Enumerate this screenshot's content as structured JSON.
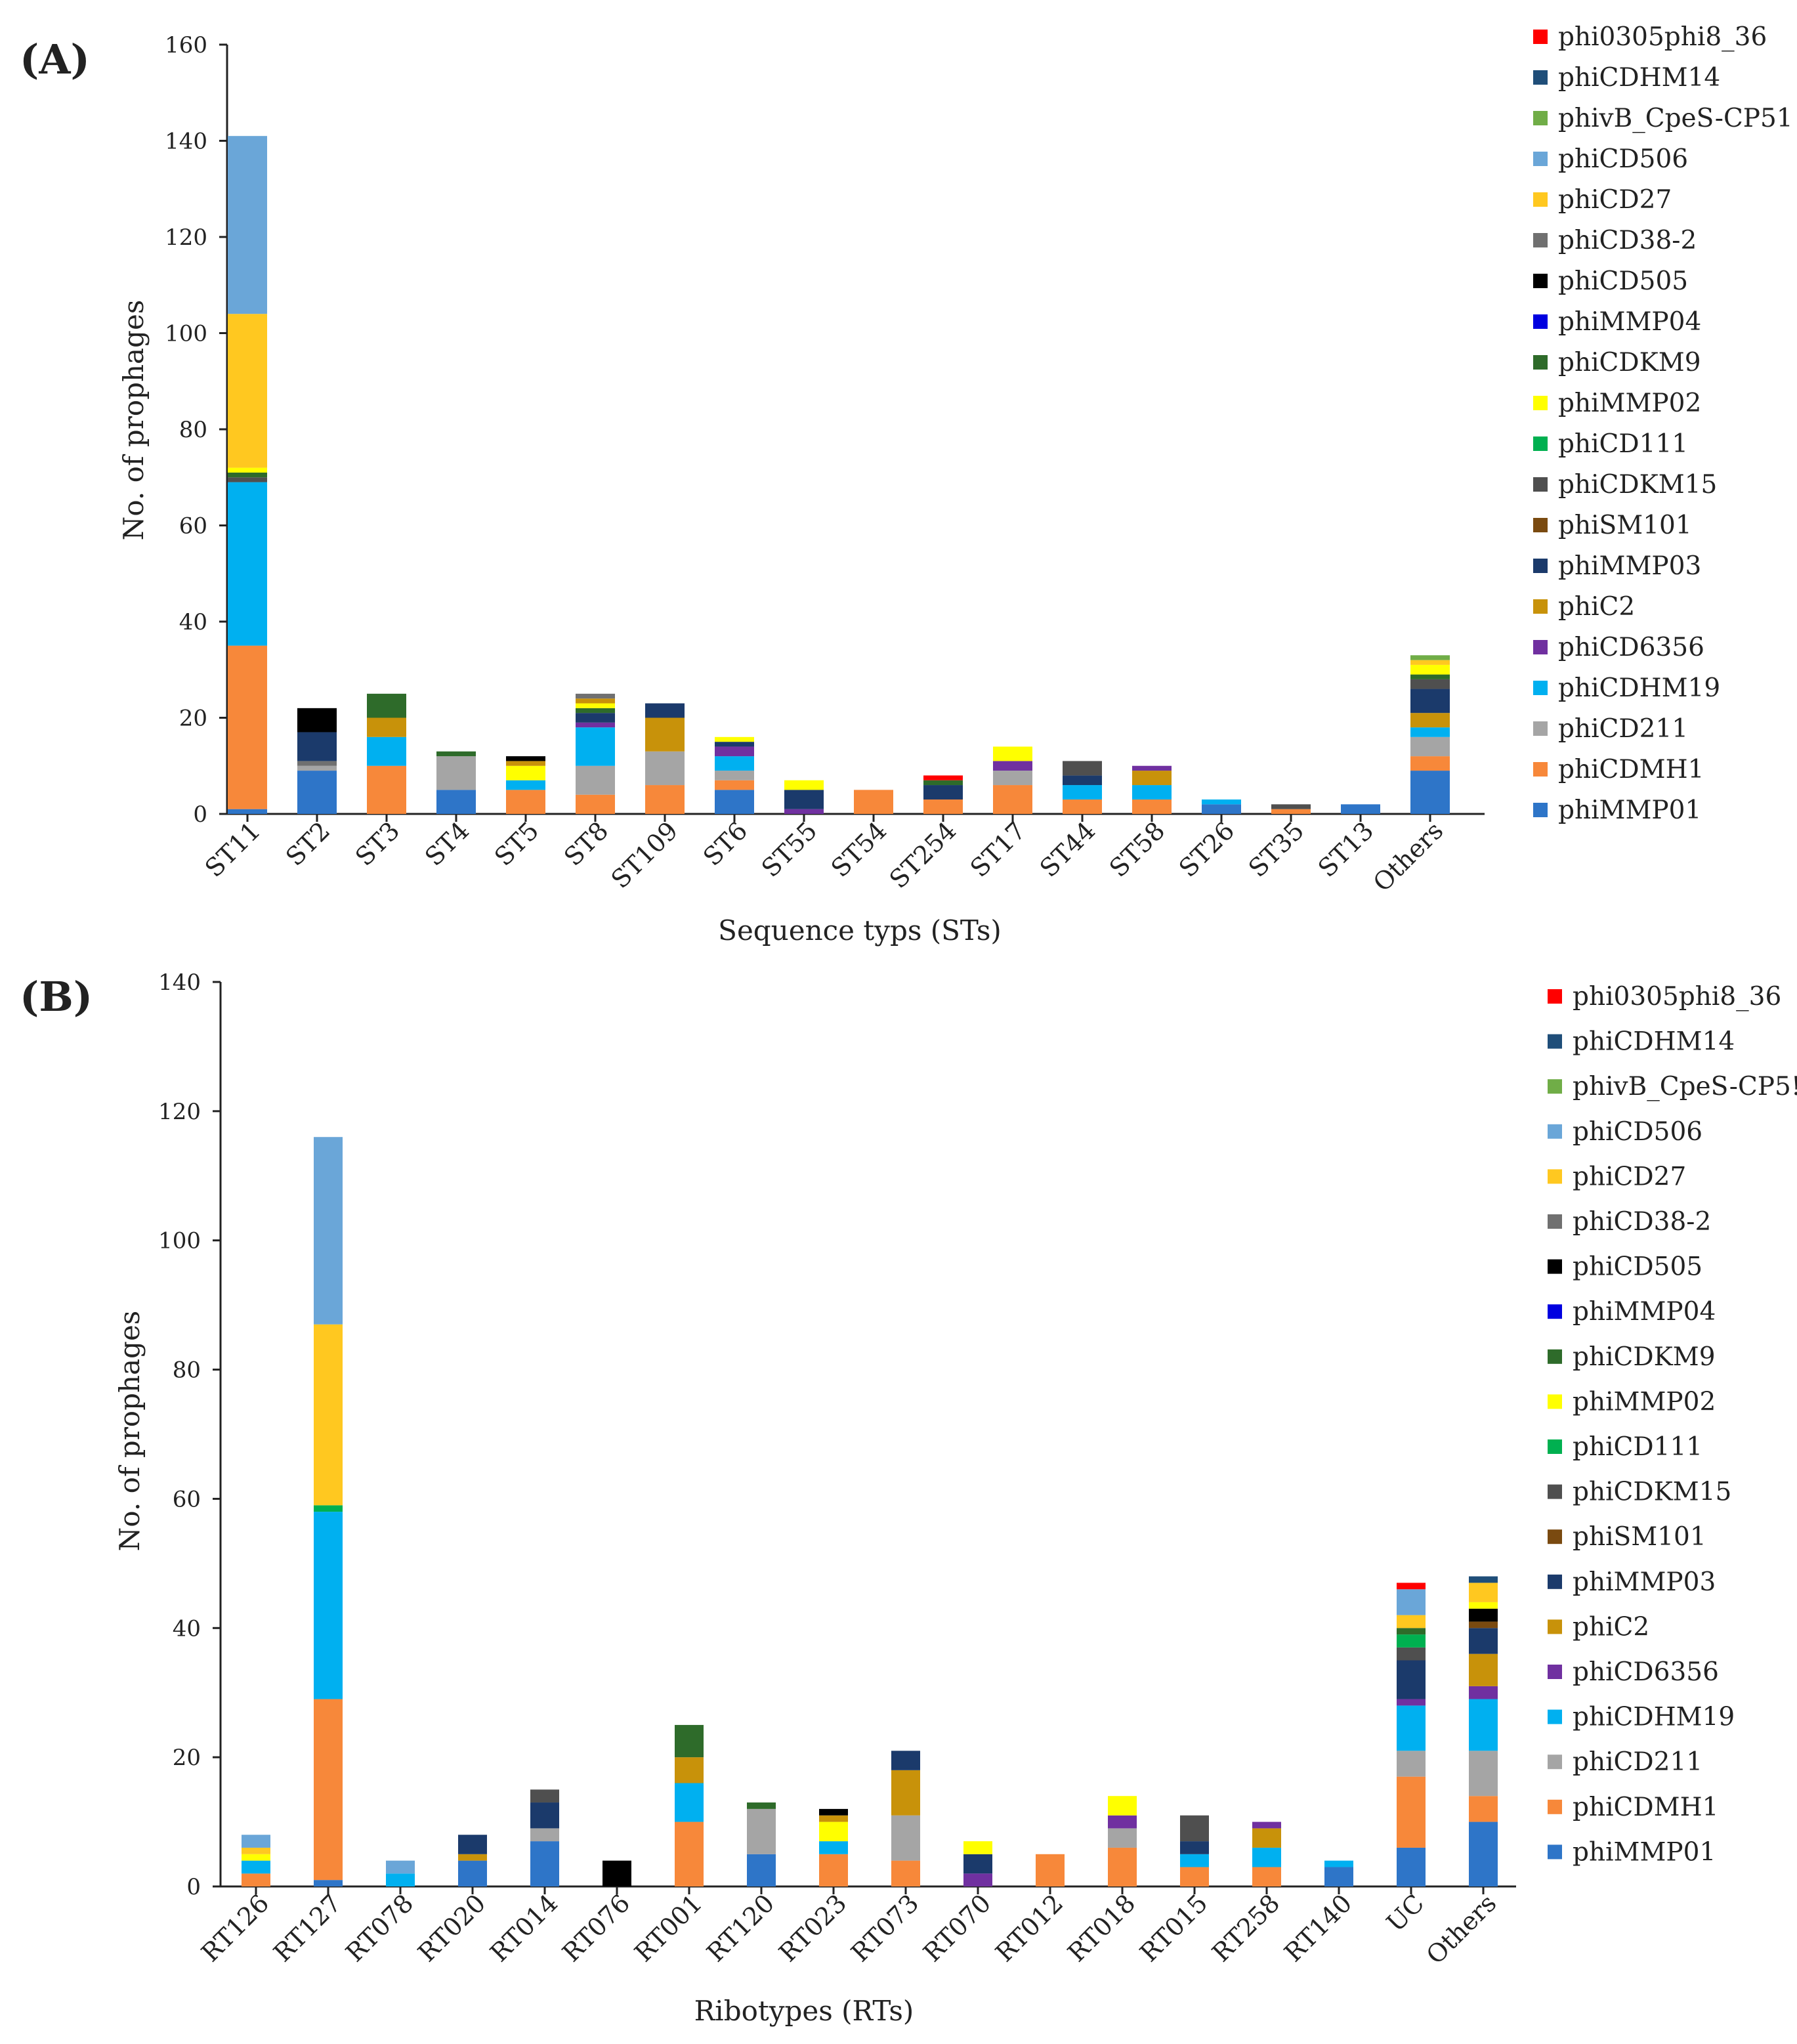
{
  "legend_order": [
    "phi0305phi8_36",
    "phiCDHM14",
    "phivB_CpeS-CP51",
    "phiCD506",
    "phiCD27",
    "phiCD38-2",
    "phiCD505",
    "phiMMP04",
    "phiCDKM9",
    "phiMMP02",
    "phiCD111",
    "phiCDKM15",
    "phiSM101",
    "phiMMP03",
    "phiC2",
    "phiCD6356",
    "phiCDHM19",
    "phiCD211",
    "phiCDMH1",
    "phiMMP01"
  ],
  "colors": {
    "phi0305phi8_36": "#FF0000",
    "phiCDHM14": "#1F4E79",
    "phivB_CpeS-CP51": "#70AD47",
    "phiCD506": "#6AA6D8",
    "phiCD27": "#FFC820",
    "phiCD38-2": "#707070",
    "phiCD505": "#000000",
    "phiMMP04": "#0000E0",
    "phiCDKM9": "#2E6B2A",
    "phiMMP02": "#FFFF00",
    "phiCD111": "#00B050",
    "phiCDKM15": "#4F4F4F",
    "phiSM101": "#7A4A10",
    "phiMMP03": "#1B3A6B",
    "phiC2": "#C8920A",
    "phiCD6356": "#7030A0",
    "phiCDHM19": "#00B0F0",
    "phiCD211": "#A5A5A5",
    "phiCDMH1": "#F7883A",
    "phiMMP01": "#2E75C8"
  },
  "chart_data": [
    {
      "type": "bar",
      "stacked": true,
      "panel_label": "(A)",
      "xlabel": "Sequence typs (STs)",
      "ylabel": "No. of prophages",
      "ylim": [
        0,
        160
      ],
      "yticks": [
        "0",
        "20",
        "40",
        "60",
        "80",
        "100",
        "120",
        "140",
        "160"
      ],
      "legend_labels": [
        "phi0305phi8_36",
        "phiCDHM14",
        "phivB_CpeS-CP51",
        "phiCD506",
        "phiCD27",
        "phiCD38-2",
        "phiCD505",
        "phiMMP04",
        "phiCDKM9",
        "phiMMP02",
        "phiCD111",
        "phiCDKM15",
        "phiSM101",
        "phiMMP03",
        "phiC2",
        "phiCD6356",
        "phiCDHM19",
        "phiCD211",
        "phiCDMH1",
        "phiMMP01"
      ],
      "categories": [
        "ST11",
        "ST2",
        "ST3",
        "ST4",
        "ST5",
        "ST8",
        "ST109",
        "ST6",
        "ST55",
        "ST54",
        "ST254",
        "ST17",
        "ST44",
        "ST58",
        "ST26",
        "ST35",
        "ST13",
        "Others"
      ],
      "stacks": [
        [
          [
            "phiMMP01",
            1
          ],
          [
            "phiCDMH1",
            34
          ],
          [
            "phiCDHM19",
            34
          ],
          [
            "phiCDKM15",
            1
          ],
          [
            "phiCDKM9",
            1
          ],
          [
            "phiMMP02",
            1
          ],
          [
            "phiCD27",
            32
          ],
          [
            "phiCD506",
            37
          ]
        ],
        [
          [
            "phiMMP01",
            9
          ],
          [
            "phiCD211",
            1
          ],
          [
            "phiCD38-2",
            1
          ],
          [
            "phiMMP03",
            6
          ],
          [
            "phiCD505",
            5
          ]
        ],
        [
          [
            "phiCDMH1",
            10
          ],
          [
            "phiCDHM19",
            6
          ],
          [
            "phiC2",
            4
          ],
          [
            "phiCDKM9",
            5
          ]
        ],
        [
          [
            "phiMMP01",
            5
          ],
          [
            "phiCD211",
            7
          ],
          [
            "phiCDKM9",
            1
          ]
        ],
        [
          [
            "phiCDMH1",
            5
          ],
          [
            "phiCDHM19",
            2
          ],
          [
            "phiMMP02",
            3
          ],
          [
            "phiC2",
            1
          ],
          [
            "phiCD505",
            1
          ]
        ],
        [
          [
            "phiCDMH1",
            4
          ],
          [
            "phiCD211",
            6
          ],
          [
            "phiCDHM19",
            8
          ],
          [
            "phiCD6356",
            1
          ],
          [
            "phiMMP03",
            2
          ],
          [
            "phiCDKM9",
            1
          ],
          [
            "phiMMP02",
            1
          ],
          [
            "phiC2",
            1
          ],
          [
            "phiCD38-2",
            1
          ]
        ],
        [
          [
            "phiCDMH1",
            6
          ],
          [
            "phiCD211",
            7
          ],
          [
            "phiC2",
            7
          ],
          [
            "phiMMP03",
            3
          ]
        ],
        [
          [
            "phiMMP01",
            5
          ],
          [
            "phiCDMH1",
            2
          ],
          [
            "phiCD211",
            2
          ],
          [
            "phiCDHM19",
            3
          ],
          [
            "phiCD6356",
            2
          ],
          [
            "phiMMP03",
            1
          ],
          [
            "phiMMP02",
            1
          ]
        ],
        [
          [
            "phiCD6356",
            1
          ],
          [
            "phiMMP03",
            4
          ],
          [
            "phiMMP02",
            2
          ]
        ],
        [
          [
            "phiCDMH1",
            5
          ]
        ],
        [
          [
            "phiCDMH1",
            3
          ],
          [
            "phiMMP03",
            3
          ],
          [
            "phiCDKM9",
            1
          ],
          [
            "phi0305phi8_36",
            1
          ]
        ],
        [
          [
            "phiCDMH1",
            6
          ],
          [
            "phiCD211",
            3
          ],
          [
            "phiCD6356",
            2
          ],
          [
            "phiMMP02",
            3
          ]
        ],
        [
          [
            "phiCDMH1",
            3
          ],
          [
            "phiCDHM19",
            3
          ],
          [
            "phiMMP03",
            2
          ],
          [
            "phiCDKM15",
            3
          ]
        ],
        [
          [
            "phiCDMH1",
            3
          ],
          [
            "phiCDHM19",
            3
          ],
          [
            "phiC2",
            3
          ],
          [
            "phiCD6356",
            1
          ]
        ],
        [
          [
            "phiMMP01",
            2
          ],
          [
            "phiCDHM19",
            1
          ]
        ],
        [
          [
            "phiCDMH1",
            1
          ],
          [
            "phiCDKM15",
            1
          ]
        ],
        [
          [
            "phiMMP01",
            2
          ]
        ],
        [
          [
            "phiMMP01",
            9
          ],
          [
            "phiCDMH1",
            3
          ],
          [
            "phiCD211",
            4
          ],
          [
            "phiCDHM19",
            2
          ],
          [
            "phiC2",
            3
          ],
          [
            "phiMMP03",
            5
          ],
          [
            "phiCDKM15",
            2
          ],
          [
            "phiCDKM9",
            1
          ],
          [
            "phiMMP02",
            2
          ],
          [
            "phiCD27",
            1
          ],
          [
            "phivB_CpeS-CP51",
            1
          ]
        ]
      ]
    },
    {
      "type": "bar",
      "stacked": true,
      "panel_label": "(B)",
      "xlabel": "Ribotypes (RTs)",
      "ylabel": "No. of prophages",
      "ylim": [
        0,
        140
      ],
      "yticks": [
        "0",
        "20",
        "40",
        "60",
        "80",
        "100",
        "120",
        "140"
      ],
      "legend_labels": [
        "phi0305phi8_36",
        "phiCDHM14",
        "phivB_CpeS-CP5!",
        "phiCD506",
        "phiCD27",
        "phiCD38-2",
        "phiCD505",
        "phiMMP04",
        "phiCDKM9",
        "phiMMP02",
        "phiCD111",
        "phiCDKM15",
        "phiSM101",
        "phiMMP03",
        "phiC2",
        "phiCD6356",
        "phiCDHM19",
        "phiCD211",
        "phiCDMH1",
        "phiMMP01"
      ],
      "categories": [
        "RT126",
        "RT127",
        "RT078",
        "RT020",
        "RT014",
        "RT076",
        "RT001",
        "RT120",
        "RT023",
        "RT073",
        "RT070",
        "RT012",
        "RT018",
        "RT015",
        "RT258",
        "RT140",
        "UC",
        "Others"
      ],
      "stacks": [
        [
          [
            "phiCDMH1",
            2
          ],
          [
            "phiCDHM19",
            2
          ],
          [
            "phiMMP02",
            1
          ],
          [
            "phiCD27",
            1
          ],
          [
            "phiCD506",
            2
          ]
        ],
        [
          [
            "phiMMP01",
            1
          ],
          [
            "phiCDMH1",
            28
          ],
          [
            "phiCDHM19",
            29
          ],
          [
            "phiCD111",
            1
          ],
          [
            "phiCD27",
            28
          ],
          [
            "phiCD506",
            29
          ]
        ],
        [
          [
            "phiCDHM19",
            2
          ],
          [
            "phiCD506",
            2
          ]
        ],
        [
          [
            "phiMMP01",
            4
          ],
          [
            "phiC2",
            1
          ],
          [
            "phiMMP03",
            3
          ]
        ],
        [
          [
            "phiMMP01",
            7
          ],
          [
            "phiCD211",
            2
          ],
          [
            "phiMMP03",
            4
          ],
          [
            "phiCDKM15",
            2
          ]
        ],
        [
          [
            "phiCD505",
            4
          ]
        ],
        [
          [
            "phiCDMH1",
            10
          ],
          [
            "phiCDHM19",
            6
          ],
          [
            "phiC2",
            4
          ],
          [
            "phiCDKM9",
            5
          ]
        ],
        [
          [
            "phiMMP01",
            5
          ],
          [
            "phiCD211",
            7
          ],
          [
            "phiCDKM9",
            1
          ]
        ],
        [
          [
            "phiCDMH1",
            5
          ],
          [
            "phiCDHM19",
            2
          ],
          [
            "phiMMP02",
            3
          ],
          [
            "phiC2",
            1
          ],
          [
            "phiCD505",
            1
          ]
        ],
        [
          [
            "phiCDMH1",
            4
          ],
          [
            "phiCD211",
            7
          ],
          [
            "phiC2",
            7
          ],
          [
            "phiMMP03",
            3
          ]
        ],
        [
          [
            "phiCD6356",
            2
          ],
          [
            "phiMMP03",
            3
          ],
          [
            "phiMMP02",
            2
          ]
        ],
        [
          [
            "phiCDMH1",
            5
          ]
        ],
        [
          [
            "phiCDMH1",
            6
          ],
          [
            "phiCD211",
            3
          ],
          [
            "phiCD6356",
            2
          ],
          [
            "phiMMP02",
            3
          ]
        ],
        [
          [
            "phiCDMH1",
            3
          ],
          [
            "phiCDHM19",
            2
          ],
          [
            "phiMMP03",
            2
          ],
          [
            "phiCDKM15",
            4
          ]
        ],
        [
          [
            "phiCDMH1",
            3
          ],
          [
            "phiCDHM19",
            3
          ],
          [
            "phiC2",
            3
          ],
          [
            "phiCD6356",
            1
          ]
        ],
        [
          [
            "phiMMP01",
            3
          ],
          [
            "phiCDHM19",
            1
          ]
        ],
        [
          [
            "phiMMP01",
            6
          ],
          [
            "phiCDMH1",
            11
          ],
          [
            "phiCD211",
            4
          ],
          [
            "phiCDHM19",
            7
          ],
          [
            "phiCD6356",
            1
          ],
          [
            "phiMMP03",
            6
          ],
          [
            "phiCDKM15",
            2
          ],
          [
            "phiCD111",
            2
          ],
          [
            "phiCDKM9",
            1
          ],
          [
            "phiCD27",
            2
          ],
          [
            "phiCD506",
            4
          ],
          [
            "phi0305phi8_36",
            1
          ]
        ],
        [
          [
            "phiMMP01",
            10
          ],
          [
            "phiCDMH1",
            4
          ],
          [
            "phiCD211",
            7
          ],
          [
            "phiCDHM19",
            8
          ],
          [
            "phiCD6356",
            2
          ],
          [
            "phiC2",
            5
          ],
          [
            "phiMMP03",
            4
          ],
          [
            "phiSM101",
            1
          ],
          [
            "phiCD505",
            2
          ],
          [
            "phiMMP02",
            1
          ],
          [
            "phiCD27",
            3
          ],
          [
            "phiCDHM14",
            1
          ]
        ]
      ]
    }
  ]
}
